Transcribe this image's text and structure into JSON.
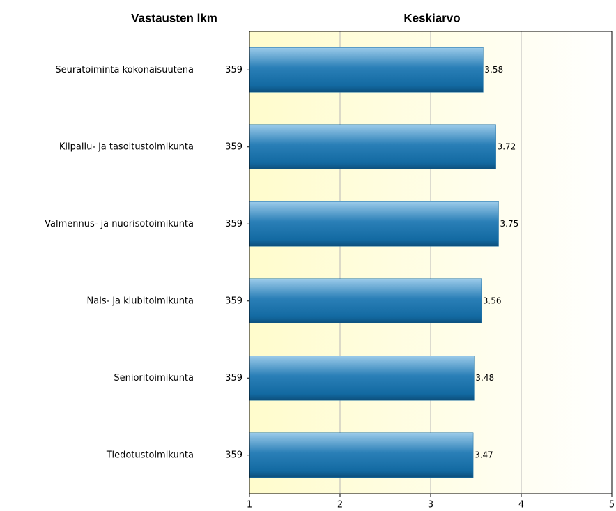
{
  "chart_data": {
    "type": "bar",
    "orientation": "horizontal",
    "count_title": "Vastausten lkm",
    "title": "Keskiarvo",
    "categories": [
      "Seuratoiminta kokonaisuutena",
      "Kilpailu- ja tasoitustoimikunta",
      "Valmennus- ja nuorisotoimikunta",
      "Nais- ja klubitoimikunta",
      "Senioritoimikunta",
      "Tiedotustoimikunta"
    ],
    "counts": [
      359,
      359,
      359,
      359,
      359,
      359
    ],
    "values": [
      3.58,
      3.72,
      3.75,
      3.56,
      3.48,
      3.47
    ],
    "color": "#1a6fa5",
    "xlim": [
      1,
      5
    ],
    "xticks": [
      1,
      2,
      3,
      4,
      5
    ],
    "grid": true
  }
}
